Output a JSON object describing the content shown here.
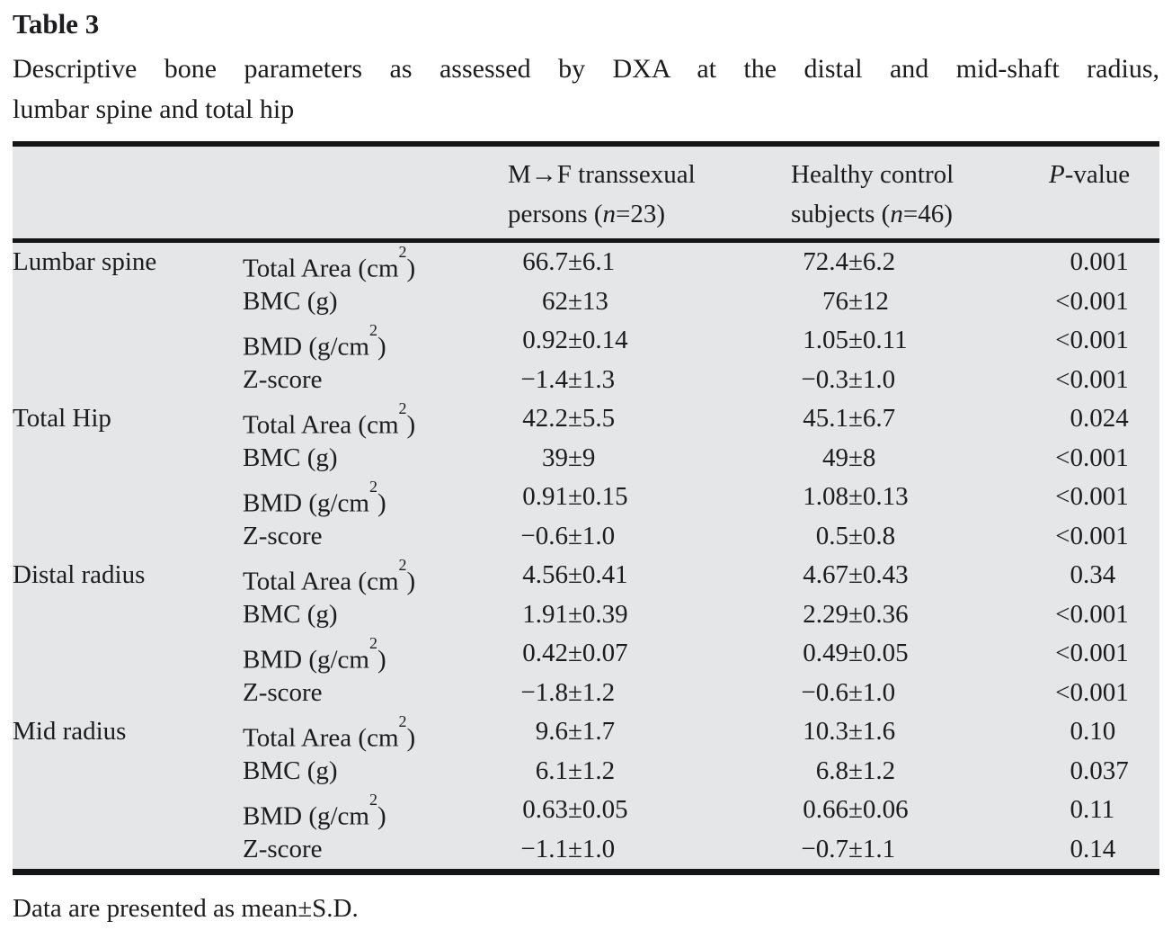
{
  "page": {
    "title": "Table 3",
    "caption_line1": "Descriptive bone parameters as assessed by DXA at the distal and mid-shaft radius,",
    "caption_line2": "lumbar spine and total hip",
    "footnote": "Data are presented as mean±S.D."
  },
  "colors": {
    "table_background": "#e5e6e8",
    "rule": "#151515",
    "text": "#1c1c1e"
  },
  "symbols": {
    "plus_minus": "±"
  },
  "header": {
    "mf_line1": "M→F transsexual",
    "mf_line2_pre": "persons (",
    "mf_line2_italic": "n",
    "mf_line2_post": "=23)",
    "hc_line1": "Healthy control",
    "hc_line2_pre": "subjects (",
    "hc_line2_italic": "n",
    "hc_line2_post": "=46)",
    "p_italic": "P",
    "p_rest": "-value"
  },
  "table": {
    "sections": [
      {
        "site": "Lumbar spine",
        "rows": [
          {
            "param_pre": "Total Area (cm",
            "param_sup": "2",
            "param_post": ")",
            "mf": [
              "66.7",
              "6.1"
            ],
            "hc": [
              "72.4",
              "6.2"
            ],
            "p": [
              "0",
              ".001"
            ]
          },
          {
            "param_pre": "BMC (g)",
            "param_sup": "",
            "param_post": "",
            "mf": [
              "62",
              "13"
            ],
            "hc": [
              "76",
              "12"
            ],
            "p": [
              "<0",
              ".001"
            ]
          },
          {
            "param_pre": "BMD (g/cm",
            "param_sup": "2",
            "param_post": ")",
            "mf": [
              "0.92",
              "0.14"
            ],
            "hc": [
              "1.05",
              "0.11"
            ],
            "p": [
              "<0",
              ".001"
            ]
          },
          {
            "param_pre": "Z-score",
            "param_sup": "",
            "param_post": "",
            "mf": [
              "−1.4",
              "1.3"
            ],
            "hc": [
              "−0.3",
              "1.0"
            ],
            "p": [
              "<0",
              ".001"
            ]
          }
        ]
      },
      {
        "site": "Total Hip",
        "rows": [
          {
            "param_pre": "Total Area (cm",
            "param_sup": "2",
            "param_post": ")",
            "mf": [
              "42.2",
              "5.5"
            ],
            "hc": [
              "45.1",
              "6.7"
            ],
            "p": [
              "0",
              ".024"
            ]
          },
          {
            "param_pre": "BMC (g)",
            "param_sup": "",
            "param_post": "",
            "mf": [
              "39",
              "9"
            ],
            "hc": [
              "49",
              "8"
            ],
            "p": [
              "<0",
              ".001"
            ]
          },
          {
            "param_pre": "BMD (g/cm",
            "param_sup": "2",
            "param_post": ")",
            "mf": [
              "0.91",
              "0.15"
            ],
            "hc": [
              "1.08",
              "0.13"
            ],
            "p": [
              "<0",
              ".001"
            ]
          },
          {
            "param_pre": "Z-score",
            "param_sup": "",
            "param_post": "",
            "mf": [
              "−0.6",
              "1.0"
            ],
            "hc": [
              "0.5",
              "0.8"
            ],
            "p": [
              "<0",
              ".001"
            ]
          }
        ]
      },
      {
        "site": "Distal radius",
        "rows": [
          {
            "param_pre": "Total Area (cm",
            "param_sup": "2",
            "param_post": ")",
            "mf": [
              "4.56",
              "0.41"
            ],
            "hc": [
              "4.67",
              "0.43"
            ],
            "p": [
              "0",
              ".34"
            ]
          },
          {
            "param_pre": "BMC (g)",
            "param_sup": "",
            "param_post": "",
            "mf": [
              "1.91",
              "0.39"
            ],
            "hc": [
              "2.29",
              "0.36"
            ],
            "p": [
              "<0",
              ".001"
            ]
          },
          {
            "param_pre": "BMD (g/cm",
            "param_sup": "2",
            "param_post": ")",
            "mf": [
              "0.42",
              "0.07"
            ],
            "hc": [
              "0.49",
              "0.05"
            ],
            "p": [
              "<0",
              ".001"
            ]
          },
          {
            "param_pre": "Z-score",
            "param_sup": "",
            "param_post": "",
            "mf": [
              "−1.8",
              "1.2"
            ],
            "hc": [
              "−0.6",
              "1.0"
            ],
            "p": [
              "<0",
              ".001"
            ]
          }
        ]
      },
      {
        "site": "Mid radius",
        "rows": [
          {
            "param_pre": "Total Area (cm",
            "param_sup": "2",
            "param_post": ")",
            "mf": [
              "9.6",
              "1.7"
            ],
            "hc": [
              "10.3",
              "1.6"
            ],
            "p": [
              "0",
              ".10"
            ]
          },
          {
            "param_pre": "BMC (g)",
            "param_sup": "",
            "param_post": "",
            "mf": [
              "6.1",
              "1.2"
            ],
            "hc": [
              "6.8",
              "1.2"
            ],
            "p": [
              "0",
              ".037"
            ]
          },
          {
            "param_pre": "BMD (g/cm",
            "param_sup": "2",
            "param_post": ")",
            "mf": [
              "0.63",
              "0.05"
            ],
            "hc": [
              "0.66",
              "0.06"
            ],
            "p": [
              "0",
              ".11"
            ]
          },
          {
            "param_pre": "Z-score",
            "param_sup": "",
            "param_post": "",
            "mf": [
              "−1.1",
              "1.0"
            ],
            "hc": [
              "−0.7",
              "1.1"
            ],
            "p": [
              "0",
              ".14"
            ]
          }
        ]
      }
    ]
  }
}
